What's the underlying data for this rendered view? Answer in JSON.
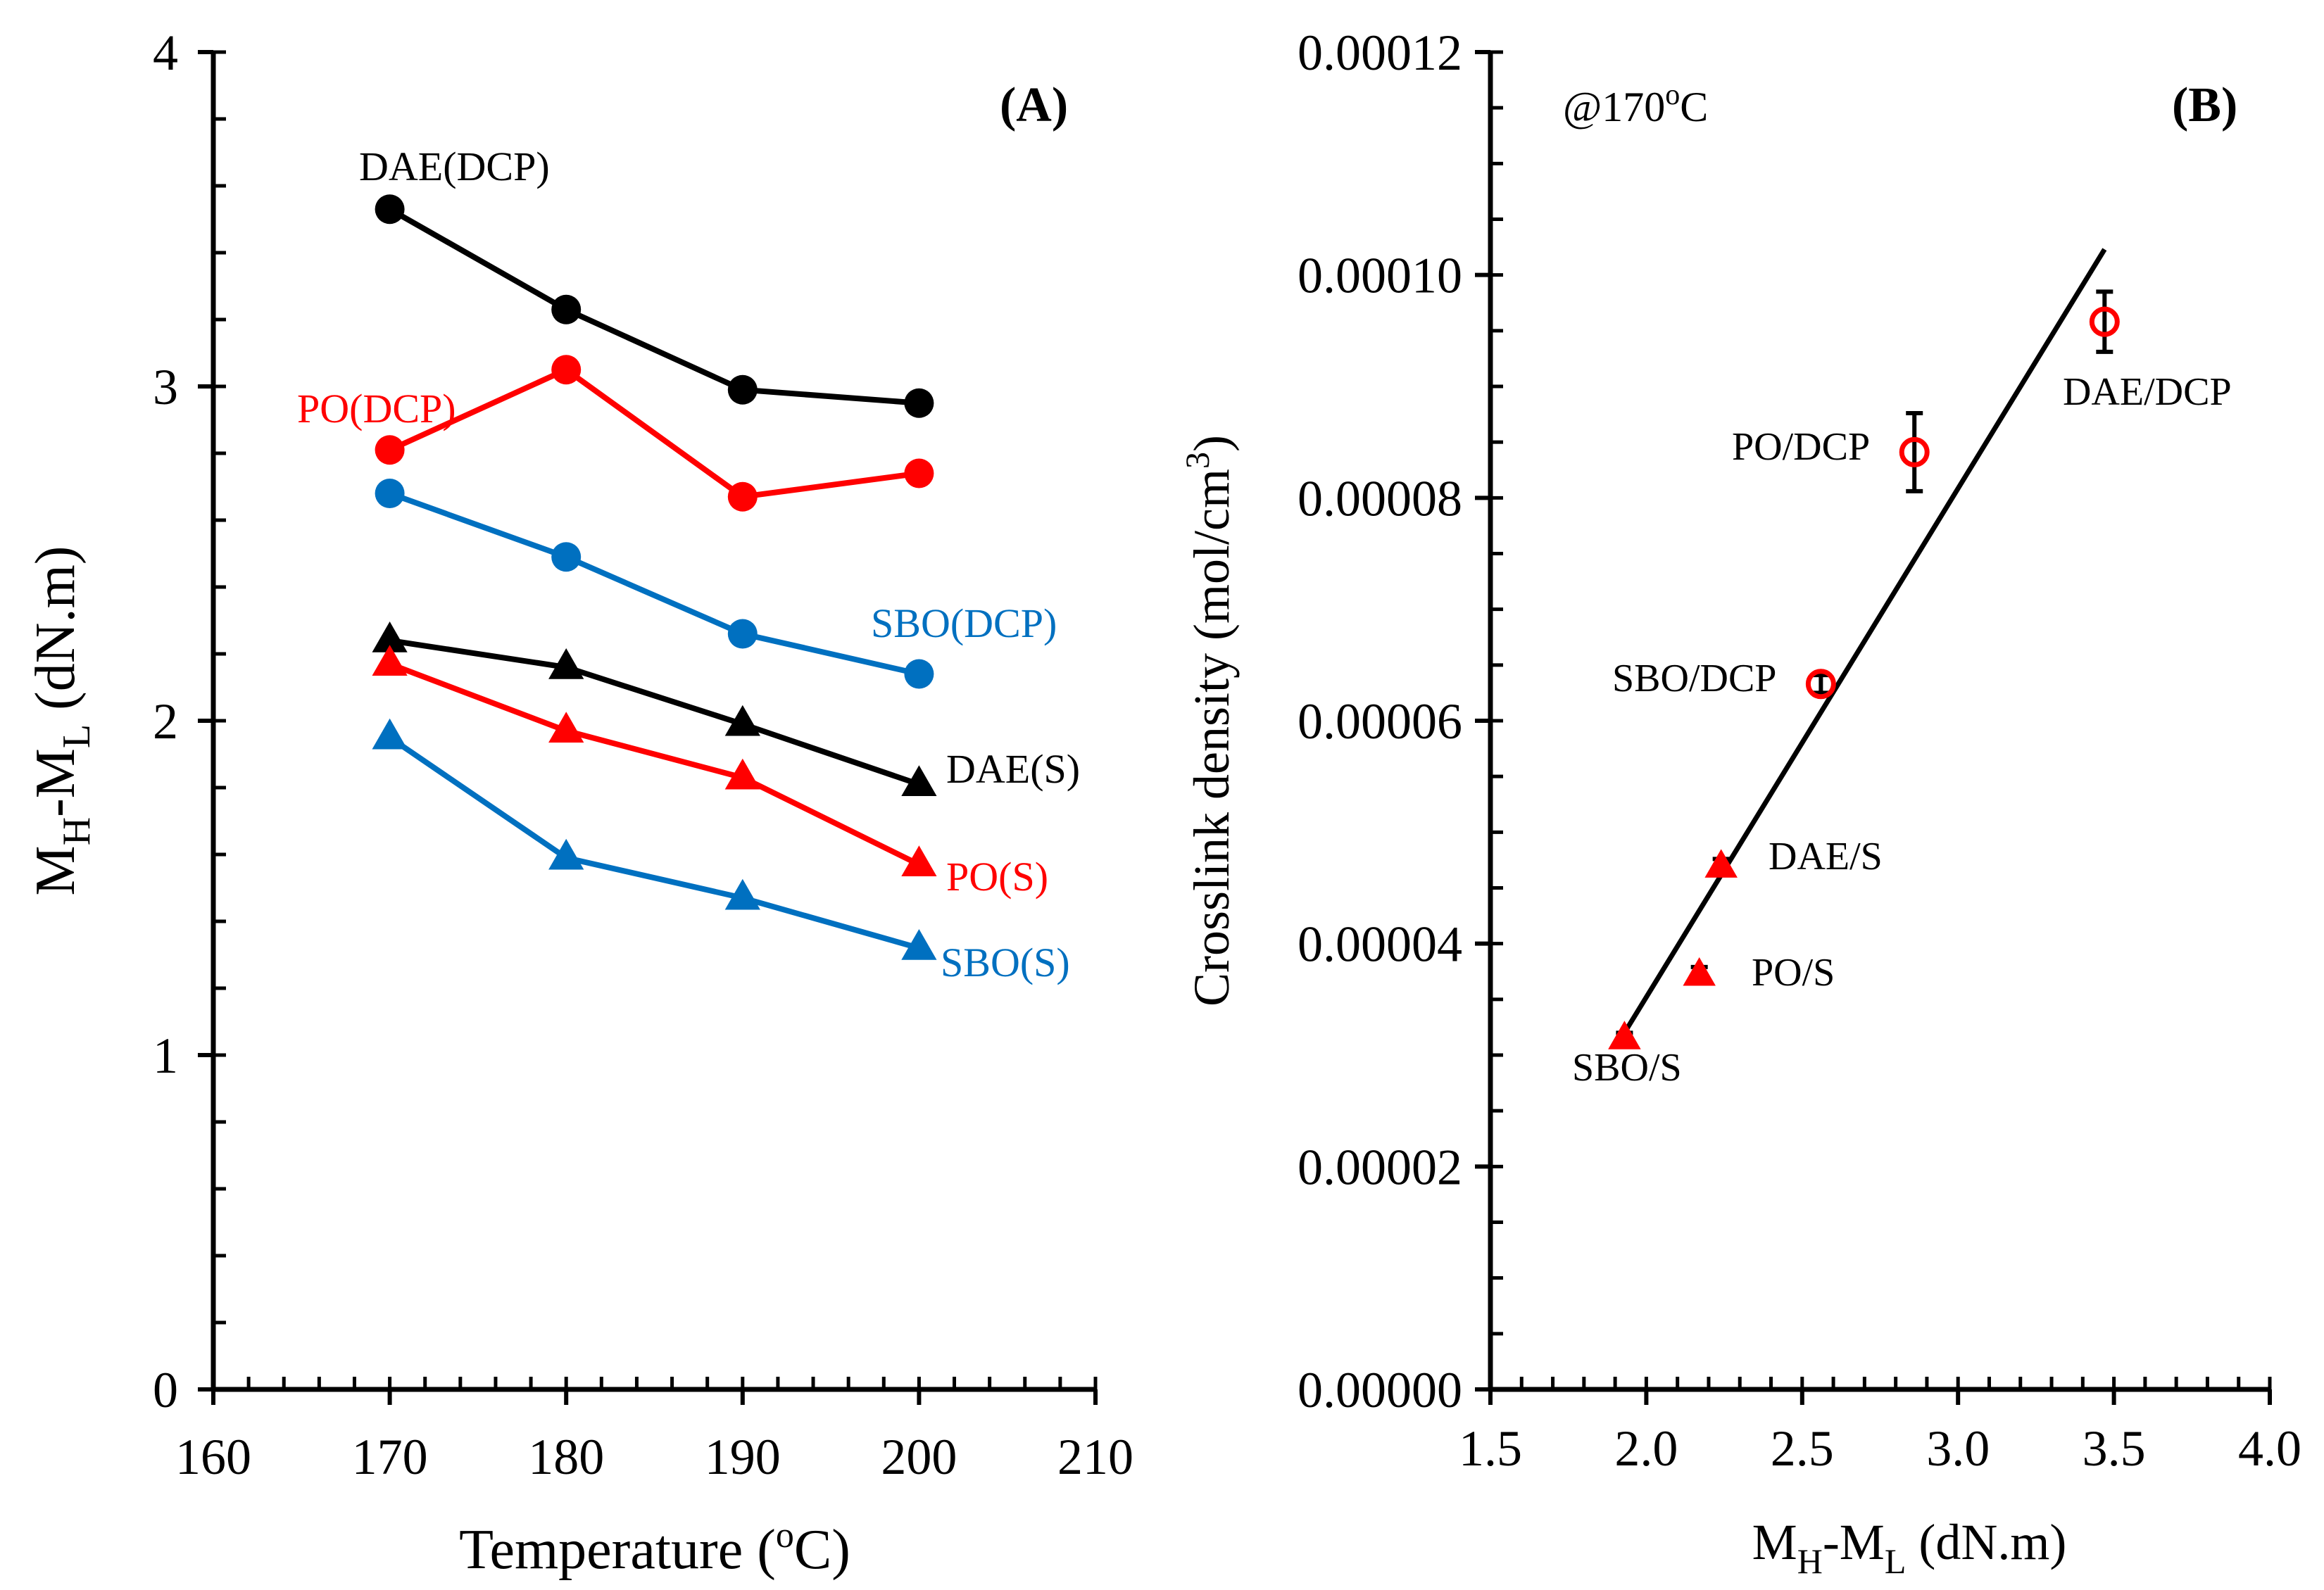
{
  "chart_data": [
    {
      "panel": "(A)",
      "type": "line",
      "xlabel": "Temperature (oC)",
      "xlabel_parts": {
        "pre": "Temperature (",
        "sup": "o",
        "post": "C)"
      },
      "ylabel": "MH-ML (dN.m)",
      "ylabel_parts": {
        "m1": "M",
        "s1": "H",
        "mid": "-M",
        "s2": "L",
        "post": " (dN.m)"
      },
      "xlim": [
        160,
        210
      ],
      "ylim": [
        0,
        4
      ],
      "x_ticks": [
        160,
        170,
        180,
        190,
        200,
        210
      ],
      "y_ticks": [
        0,
        1,
        2,
        3,
        4
      ],
      "x_tick_labels": [
        "160",
        "170",
        "180",
        "190",
        "200",
        "210"
      ],
      "y_tick_labels": [
        "0",
        "1",
        "2",
        "3",
        "4"
      ],
      "series": [
        {
          "name": "DAE(DCP)",
          "color": "#000000",
          "marker": "circle",
          "x": [
            170,
            180,
            190,
            200
          ],
          "values": [
            3.53,
            3.23,
            2.99,
            2.95
          ]
        },
        {
          "name": "PO(DCP)",
          "color": "#ff0000",
          "marker": "circle",
          "x": [
            170,
            180,
            190,
            200
          ],
          "values": [
            2.81,
            3.05,
            2.67,
            2.74
          ]
        },
        {
          "name": "SBO(DCP)",
          "color": "#0070c0",
          "marker": "circle",
          "x": [
            170,
            180,
            190,
            200
          ],
          "values": [
            2.68,
            2.49,
            2.26,
            2.14
          ]
        },
        {
          "name": "DAE(S)",
          "color": "#000000",
          "marker": "triangle",
          "x": [
            170,
            180,
            190,
            200
          ],
          "values": [
            2.24,
            2.16,
            1.99,
            1.81
          ]
        },
        {
          "name": "PO(S)",
          "color": "#ff0000",
          "marker": "triangle",
          "x": [
            170,
            180,
            190,
            200
          ],
          "values": [
            2.17,
            1.97,
            1.83,
            1.57
          ]
        },
        {
          "name": "SBO(S)",
          "color": "#0070c0",
          "marker": "triangle",
          "x": [
            170,
            180,
            190,
            200
          ],
          "values": [
            1.95,
            1.59,
            1.47,
            1.32
          ]
        }
      ]
    },
    {
      "panel": "(B)",
      "type": "scatter",
      "annotation": "@170oC",
      "annotation_parts": {
        "pre": "@170",
        "sup": "o",
        "post": "C"
      },
      "xlabel": "MH-ML (dN.m)",
      "xlabel_parts": {
        "m1": "M",
        "s1": "H",
        "mid": "-M",
        "s2": "L",
        "post": " (dN.m)"
      },
      "ylabel": "Crosslink density (mol/cm3)",
      "ylabel_parts": {
        "pre": "Crosslink density (mol/cm",
        "sup": "3",
        "post": ")"
      },
      "xlim": [
        1.5,
        4.0
      ],
      "ylim": [
        0,
        0.00012
      ],
      "x_ticks": [
        1.5,
        2.0,
        2.5,
        3.0,
        3.5,
        4.0
      ],
      "y_ticks": [
        0,
        2e-05,
        4e-05,
        6e-05,
        8e-05,
        0.0001,
        0.00012
      ],
      "x_tick_labels": [
        "1.5",
        "2.0",
        "2.5",
        "3.0",
        "3.5",
        "4.0"
      ],
      "y_tick_labels": [
        "0.00000",
        "0.00002",
        "0.00004",
        "0.00006",
        "0.00008",
        "0.00010",
        "0.00012"
      ],
      "points": [
        {
          "label": "DAE/DCP",
          "x": 3.47,
          "y": 9.58e-05,
          "err": 2.7e-06,
          "marker": "open-circle",
          "color": "#ff0000"
        },
        {
          "label": "PO/DCP",
          "x": 2.86,
          "y": 8.41e-05,
          "err": 3.5e-06,
          "marker": "open-circle",
          "color": "#ff0000"
        },
        {
          "label": "SBO/DCP",
          "x": 2.56,
          "y": 6.33e-05,
          "err": 8e-07,
          "marker": "open-circle",
          "color": "#ff0000"
        },
        {
          "label": "DAE/S",
          "x": 2.24,
          "y": 4.69e-05,
          "err": 7e-07,
          "marker": "triangle",
          "color": "#ff0000"
        },
        {
          "label": "PO/S",
          "x": 2.17,
          "y": 3.72e-05,
          "err": 7e-07,
          "marker": "triangle",
          "color": "#ff0000"
        },
        {
          "label": "SBO/S",
          "x": 1.93,
          "y": 3.15e-05,
          "err": 5e-07,
          "marker": "triangle",
          "color": "#ff0000"
        }
      ],
      "trendline": {
        "x": [
          1.93,
          3.47
        ],
        "y": [
          3.2e-05,
          0.0001023
        ],
        "color": "#000000"
      }
    }
  ]
}
